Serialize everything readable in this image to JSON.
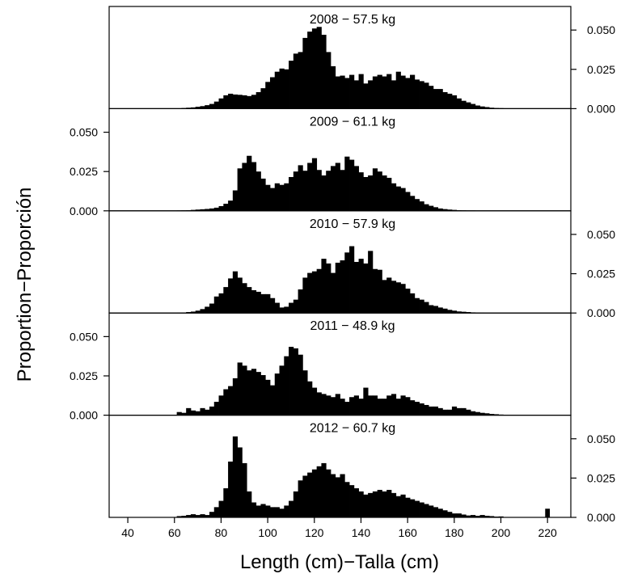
{
  "chart_data": {
    "type": "bar",
    "ylabel": "Proportion−Proporción",
    "xlabel": "Length (cm)−Talla (cm)",
    "x_ticks": [
      40,
      60,
      80,
      100,
      120,
      140,
      160,
      180,
      200,
      220
    ],
    "xlim": [
      32,
      230
    ],
    "ylim": [
      0,
      0.065
    ],
    "y_ticks": [
      "0.000",
      "0.025",
      "0.050"
    ],
    "bin_width": 2,
    "bin_start": 61,
    "panels": [
      {
        "title": "2008 − 57.5 kg",
        "axis_side": "right",
        "values": [
          0.0002,
          0.0004,
          0.0006,
          0.0008,
          0.0012,
          0.0016,
          0.0022,
          0.003,
          0.0045,
          0.0065,
          0.0085,
          0.0095,
          0.009,
          0.0088,
          0.0085,
          0.008,
          0.0088,
          0.0105,
          0.013,
          0.017,
          0.02,
          0.0235,
          0.0255,
          0.025,
          0.0305,
          0.035,
          0.036,
          0.045,
          0.049,
          0.051,
          0.052,
          0.047,
          0.036,
          0.027,
          0.0205,
          0.021,
          0.0195,
          0.0215,
          0.018,
          0.022,
          0.016,
          0.018,
          0.0205,
          0.0215,
          0.0205,
          0.022,
          0.018,
          0.0235,
          0.021,
          0.0195,
          0.0215,
          0.0185,
          0.0175,
          0.0165,
          0.0145,
          0.0125,
          0.0125,
          0.0105,
          0.0095,
          0.0085,
          0.0065,
          0.005,
          0.004,
          0.003,
          0.002,
          0.0014,
          0.001,
          0.0006,
          0.0004,
          0.0003
        ]
      },
      {
        "title": "2009 − 61.1 kg",
        "axis_side": "left",
        "values": [
          0.0002,
          0.0003,
          0.0004,
          0.0006,
          0.0008,
          0.001,
          0.0012,
          0.0015,
          0.002,
          0.003,
          0.0045,
          0.0065,
          0.013,
          0.027,
          0.0305,
          0.035,
          0.031,
          0.025,
          0.0205,
          0.0165,
          0.0145,
          0.0175,
          0.0165,
          0.0175,
          0.0215,
          0.025,
          0.029,
          0.0255,
          0.0305,
          0.0335,
          0.026,
          0.0225,
          0.0255,
          0.0285,
          0.0305,
          0.026,
          0.0345,
          0.0325,
          0.0285,
          0.0245,
          0.0215,
          0.0225,
          0.027,
          0.025,
          0.0225,
          0.021,
          0.0175,
          0.0155,
          0.0145,
          0.012,
          0.0095,
          0.0075,
          0.006,
          0.0042,
          0.0032,
          0.0023,
          0.0015,
          0.0011,
          0.0008,
          0.0006,
          0.0004,
          0.0003,
          0.0002,
          0.0002,
          0.0001,
          0.0001,
          0,
          0,
          0,
          0
        ]
      },
      {
        "title": "2010 − 57.9 kg",
        "axis_side": "right",
        "values": [
          0.0002,
          0.0003,
          0.0006,
          0.0009,
          0.0015,
          0.0025,
          0.004,
          0.006,
          0.0105,
          0.0125,
          0.0165,
          0.022,
          0.0265,
          0.0225,
          0.019,
          0.0165,
          0.0145,
          0.0135,
          0.012,
          0.012,
          0.0095,
          0.0065,
          0.0035,
          0.004,
          0.0065,
          0.0085,
          0.015,
          0.0225,
          0.0255,
          0.0265,
          0.028,
          0.0345,
          0.0315,
          0.0255,
          0.032,
          0.0335,
          0.0385,
          0.0425,
          0.0325,
          0.0345,
          0.0315,
          0.0395,
          0.028,
          0.0275,
          0.021,
          0.0225,
          0.0205,
          0.0195,
          0.0185,
          0.0155,
          0.0125,
          0.0095,
          0.0085,
          0.007,
          0.005,
          0.0045,
          0.0035,
          0.0028,
          0.002,
          0.0015,
          0.001,
          0.0008,
          0.0006,
          0.0004,
          0.0003,
          0.0002,
          0.0001,
          0.0001,
          0,
          0
        ]
      },
      {
        "title": "2011 − 48.9 kg",
        "axis_side": "left",
        "values": [
          0.002,
          0.0015,
          0.0045,
          0.003,
          0.0025,
          0.0045,
          0.0035,
          0.0055,
          0.0085,
          0.0125,
          0.0165,
          0.0185,
          0.0235,
          0.0335,
          0.0315,
          0.0285,
          0.0295,
          0.0275,
          0.0255,
          0.0225,
          0.019,
          0.0265,
          0.0315,
          0.0375,
          0.0435,
          0.0425,
          0.0385,
          0.0285,
          0.0215,
          0.0175,
          0.0145,
          0.0135,
          0.0125,
          0.0115,
          0.0135,
          0.0105,
          0.0085,
          0.0115,
          0.0125,
          0.0105,
          0.0175,
          0.0125,
          0.0125,
          0.0105,
          0.0105,
          0.0125,
          0.0135,
          0.0105,
          0.0125,
          0.0115,
          0.0095,
          0.0085,
          0.0075,
          0.0065,
          0.0055,
          0.0055,
          0.0045,
          0.0035,
          0.0035,
          0.0055,
          0.0045,
          0.0045,
          0.0035,
          0.0025,
          0.002,
          0.0015,
          0.0012,
          0.0008,
          0.0006,
          0.0004
        ]
      },
      {
        "title": "2012 − 60.7 kg",
        "axis_side": "right",
        "values": [
          0.0008,
          0.001,
          0.0015,
          0.002,
          0.0015,
          0.002,
          0.0015,
          0.0035,
          0.0065,
          0.0105,
          0.0185,
          0.0355,
          0.0515,
          0.0445,
          0.0345,
          0.0165,
          0.0095,
          0.0075,
          0.0085,
          0.0075,
          0.0065,
          0.0065,
          0.0055,
          0.0075,
          0.0105,
          0.0165,
          0.0235,
          0.0265,
          0.0285,
          0.0305,
          0.0325,
          0.0345,
          0.0305,
          0.0275,
          0.0255,
          0.0275,
          0.0225,
          0.0205,
          0.0185,
          0.0165,
          0.0145,
          0.0155,
          0.0165,
          0.0175,
          0.0165,
          0.0175,
          0.0155,
          0.0135,
          0.0145,
          0.0125,
          0.0115,
          0.0105,
          0.0095,
          0.0085,
          0.0075,
          0.0065,
          0.0055,
          0.0045,
          0.0035,
          0.0025,
          0.0025,
          0.0018,
          0.0012,
          0.0015,
          0.001,
          0.0015,
          0.001,
          0.0008,
          0.0005,
          0.0006
        ]
      }
    ],
    "extra_bars": [
      {
        "panel": 4,
        "x": 220,
        "value": 0.0055
      }
    ]
  }
}
